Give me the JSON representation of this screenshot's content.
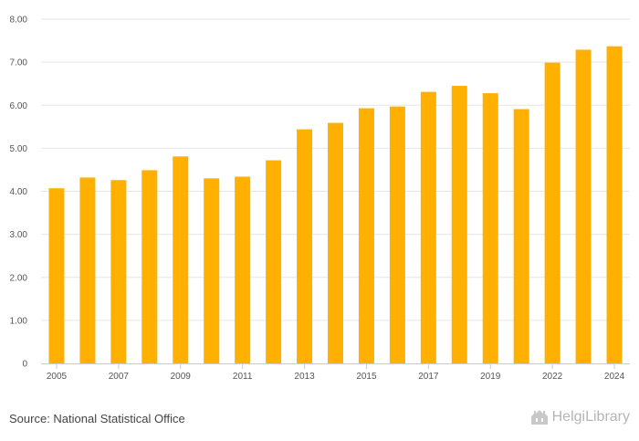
{
  "chart_data": {
    "type": "bar",
    "years": [
      "2005",
      "2006",
      "2007",
      "2008",
      "2009",
      "2010",
      "2011",
      "2012",
      "2013",
      "2014",
      "2015",
      "2016",
      "2017",
      "2018",
      "2019",
      "2020",
      "2022",
      "2023",
      "2024"
    ],
    "values": [
      4.07,
      4.32,
      4.26,
      4.49,
      4.81,
      4.3,
      4.34,
      4.72,
      5.44,
      5.59,
      5.93,
      5.97,
      6.31,
      6.45,
      6.28,
      5.91,
      6.99,
      7.29,
      7.37
    ],
    "x_tick_labels": [
      "2005",
      "",
      "2007",
      "",
      "2009",
      "",
      "2011",
      "",
      "2013",
      "",
      "2015",
      "",
      "2017",
      "",
      "2019",
      "",
      "2022",
      "",
      "2024"
    ],
    "y_tick_labels": [
      "0",
      "1.00",
      "2.00",
      "3.00",
      "4.00",
      "5.00",
      "6.00",
      "7.00",
      "8.00"
    ],
    "y_ticks": [
      0,
      1,
      2,
      3,
      4,
      5,
      6,
      7,
      8
    ],
    "ylim": [
      0,
      8
    ],
    "title": "",
    "xlabel": "",
    "ylabel": "",
    "grid": true,
    "bar_color": "#FFB000"
  },
  "footer": {
    "source": "Source: National Statistical Office",
    "brand": "HelgiLibrary",
    "brand_icon": "helgi-building-logo"
  }
}
